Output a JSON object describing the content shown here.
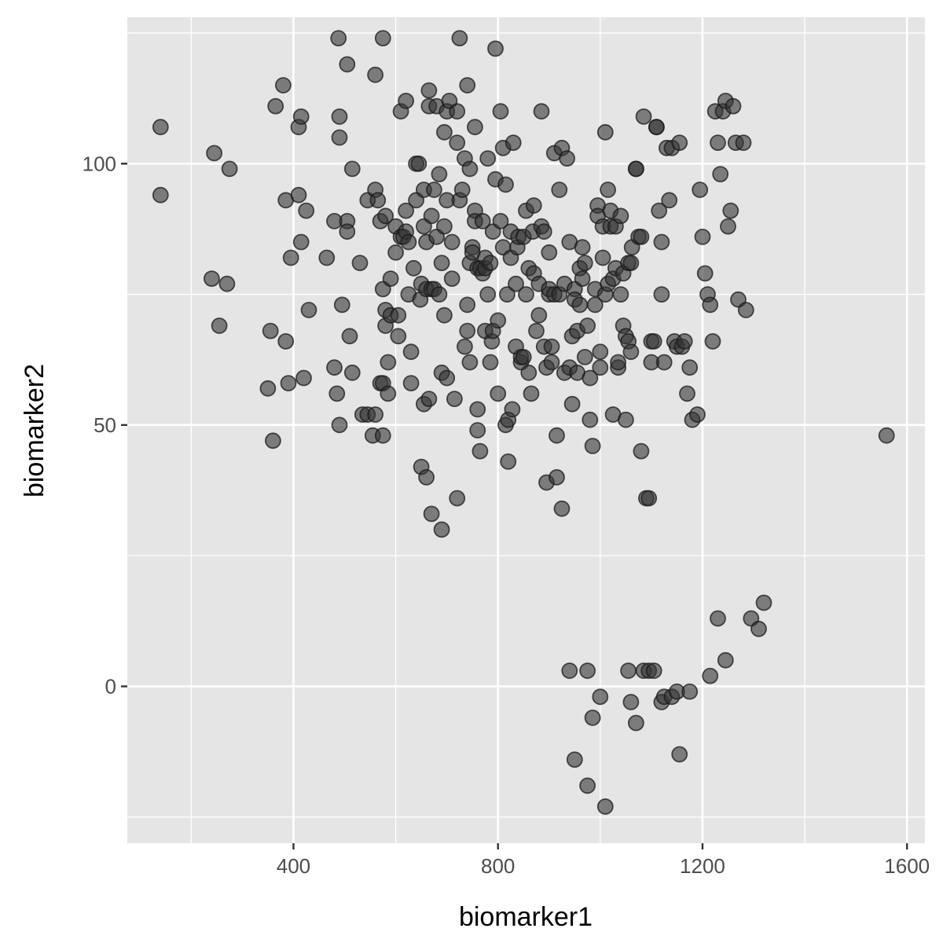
{
  "chart_data": {
    "type": "scatter",
    "xlabel": "biomarker1",
    "ylabel": "biomarker2",
    "xlim": [
      75,
      1635
    ],
    "ylim": [
      -30,
      128
    ],
    "x_ticks": [
      400,
      800,
      1200,
      1600
    ],
    "y_ticks": [
      0,
      50,
      100
    ],
    "x_minor": [
      200,
      600,
      1000,
      1400
    ],
    "y_minor": [
      -25,
      25,
      75,
      125
    ],
    "grid": true,
    "legend": "none",
    "colors": {
      "panel": "#e5e5e5",
      "grid": "#ffffff",
      "point": "#333333",
      "point_stroke": "#1a1a1a"
    },
    "point_opacity": 0.6,
    "points": [
      [
        140,
        107
      ],
      [
        140,
        94
      ],
      [
        245,
        102
      ],
      [
        275,
        99
      ],
      [
        240,
        78
      ],
      [
        255,
        69
      ],
      [
        270,
        77
      ],
      [
        355,
        68
      ],
      [
        350,
        57
      ],
      [
        360,
        47
      ],
      [
        365,
        111
      ],
      [
        380,
        115
      ],
      [
        385,
        93
      ],
      [
        385,
        66
      ],
      [
        390,
        58
      ],
      [
        395,
        82
      ],
      [
        410,
        107
      ],
      [
        410,
        94
      ],
      [
        415,
        109
      ],
      [
        415,
        85
      ],
      [
        420,
        59
      ],
      [
        425,
        91
      ],
      [
        430,
        72
      ],
      [
        465,
        82
      ],
      [
        480,
        89
      ],
      [
        480,
        61
      ],
      [
        485,
        56
      ],
      [
        488,
        124
      ],
      [
        490,
        109
      ],
      [
        490,
        105
      ],
      [
        490,
        50
      ],
      [
        495,
        73
      ],
      [
        505,
        119
      ],
      [
        505,
        89
      ],
      [
        505,
        87
      ],
      [
        510,
        67
      ],
      [
        515,
        99
      ],
      [
        515,
        60
      ],
      [
        530,
        81
      ],
      [
        535,
        52
      ],
      [
        545,
        52
      ],
      [
        545,
        93
      ],
      [
        555,
        48
      ],
      [
        560,
        95
      ],
      [
        560,
        117
      ],
      [
        560,
        52
      ],
      [
        565,
        93
      ],
      [
        570,
        89
      ],
      [
        570,
        58
      ],
      [
        575,
        124
      ],
      [
        575,
        48
      ],
      [
        575,
        58
      ],
      [
        575,
        76
      ],
      [
        580,
        90
      ],
      [
        580,
        72
      ],
      [
        580,
        69
      ],
      [
        585,
        62
      ],
      [
        585,
        56
      ],
      [
        590,
        71
      ],
      [
        590,
        78
      ],
      [
        600,
        88
      ],
      [
        600,
        83
      ],
      [
        605,
        71
      ],
      [
        605,
        67
      ],
      [
        610,
        110
      ],
      [
        610,
        86
      ],
      [
        615,
        86
      ],
      [
        620,
        112
      ],
      [
        620,
        91
      ],
      [
        620,
        87
      ],
      [
        625,
        85
      ],
      [
        625,
        75
      ],
      [
        630,
        58
      ],
      [
        630,
        64
      ],
      [
        635,
        80
      ],
      [
        640,
        100
      ],
      [
        640,
        93
      ],
      [
        645,
        100
      ],
      [
        648,
        74
      ],
      [
        650,
        42
      ],
      [
        650,
        77
      ],
      [
        655,
        95
      ],
      [
        655,
        88
      ],
      [
        655,
        54
      ],
      [
        660,
        76
      ],
      [
        660,
        85
      ],
      [
        660,
        40
      ],
      [
        665,
        114
      ],
      [
        665,
        111
      ],
      [
        665,
        55
      ],
      [
        670,
        76
      ],
      [
        670,
        90
      ],
      [
        670,
        33
      ],
      [
        675,
        95
      ],
      [
        675,
        76
      ],
      [
        680,
        86
      ],
      [
        680,
        111
      ],
      [
        685,
        98
      ],
      [
        685,
        75
      ],
      [
        690,
        81
      ],
      [
        690,
        60
      ],
      [
        690,
        30
      ],
      [
        695,
        88
      ],
      [
        695,
        106
      ],
      [
        695,
        71
      ],
      [
        700,
        93
      ],
      [
        700,
        110
      ],
      [
        700,
        59
      ],
      [
        705,
        112
      ],
      [
        710,
        78
      ],
      [
        710,
        85
      ],
      [
        715,
        55
      ],
      [
        720,
        104
      ],
      [
        720,
        110
      ],
      [
        720,
        36
      ],
      [
        725,
        124
      ],
      [
        725,
        93
      ],
      [
        730,
        95
      ],
      [
        735,
        101
      ],
      [
        735,
        65
      ],
      [
        740,
        115
      ],
      [
        740,
        73
      ],
      [
        740,
        68
      ],
      [
        745,
        99
      ],
      [
        745,
        62
      ],
      [
        745,
        81
      ],
      [
        750,
        84
      ],
      [
        750,
        83
      ],
      [
        755,
        107
      ],
      [
        755,
        91
      ],
      [
        755,
        89
      ],
      [
        760,
        80
      ],
      [
        760,
        53
      ],
      [
        760,
        49
      ],
      [
        765,
        80
      ],
      [
        765,
        45
      ],
      [
        770,
        79
      ],
      [
        770,
        89
      ],
      [
        775,
        68
      ],
      [
        775,
        80
      ],
      [
        775,
        82
      ],
      [
        780,
        75
      ],
      [
        780,
        101
      ],
      [
        785,
        62
      ],
      [
        785,
        81
      ],
      [
        788,
        66
      ],
      [
        790,
        68
      ],
      [
        790,
        87
      ],
      [
        795,
        97
      ],
      [
        795,
        122
      ],
      [
        800,
        56
      ],
      [
        800,
        70
      ],
      [
        805,
        89
      ],
      [
        805,
        110
      ],
      [
        810,
        84
      ],
      [
        810,
        103
      ],
      [
        815,
        96
      ],
      [
        815,
        50
      ],
      [
        818,
        75
      ],
      [
        820,
        51
      ],
      [
        820,
        43
      ],
      [
        825,
        87
      ],
      [
        825,
        82
      ],
      [
        828,
        53
      ],
      [
        830,
        104
      ],
      [
        835,
        77
      ],
      [
        835,
        65
      ],
      [
        838,
        84
      ],
      [
        840,
        86
      ],
      [
        845,
        62
      ],
      [
        845,
        63
      ],
      [
        850,
        86
      ],
      [
        850,
        63
      ],
      [
        855,
        91
      ],
      [
        855,
        75
      ],
      [
        860,
        80
      ],
      [
        860,
        60
      ],
      [
        865,
        56
      ],
      [
        868,
        87
      ],
      [
        870,
        92
      ],
      [
        870,
        79
      ],
      [
        875,
        68
      ],
      [
        880,
        77
      ],
      [
        880,
        71
      ],
      [
        885,
        110
      ],
      [
        885,
        88
      ],
      [
        890,
        87
      ],
      [
        890,
        65
      ],
      [
        895,
        61
      ],
      [
        895,
        39
      ],
      [
        900,
        75
      ],
      [
        900,
        76
      ],
      [
        900,
        83
      ],
      [
        905,
        65
      ],
      [
        905,
        62
      ],
      [
        910,
        75
      ],
      [
        910,
        102
      ],
      [
        915,
        48
      ],
      [
        915,
        40
      ],
      [
        920,
        75
      ],
      [
        920,
        95
      ],
      [
        925,
        34
      ],
      [
        925,
        103
      ],
      [
        930,
        60
      ],
      [
        930,
        77
      ],
      [
        935,
        101
      ],
      [
        940,
        85
      ],
      [
        940,
        61
      ],
      [
        945,
        67
      ],
      [
        945,
        54
      ],
      [
        950,
        76
      ],
      [
        950,
        74
      ],
      [
        955,
        60
      ],
      [
        955,
        68
      ],
      [
        960,
        80
      ],
      [
        960,
        73
      ],
      [
        965,
        78
      ],
      [
        965,
        84
      ],
      [
        970,
        63
      ],
      [
        970,
        81
      ],
      [
        975,
        69
      ],
      [
        980,
        59
      ],
      [
        980,
        51
      ],
      [
        985,
        46
      ],
      [
        990,
        76
      ],
      [
        990,
        73
      ],
      [
        995,
        92
      ],
      [
        995,
        90
      ],
      [
        1000,
        61
      ],
      [
        1000,
        64
      ],
      [
        1005,
        88
      ],
      [
        1005,
        82
      ],
      [
        1010,
        106
      ],
      [
        1010,
        75
      ],
      [
        1015,
        95
      ],
      [
        1015,
        77
      ],
      [
        1020,
        88
      ],
      [
        1020,
        91
      ],
      [
        1025,
        78
      ],
      [
        1025,
        52
      ],
      [
        1030,
        88
      ],
      [
        1030,
        80
      ],
      [
        1035,
        61
      ],
      [
        1035,
        62
      ],
      [
        1040,
        75
      ],
      [
        1040,
        90
      ],
      [
        1045,
        79
      ],
      [
        1045,
        69
      ],
      [
        1050,
        67
      ],
      [
        1050,
        51
      ],
      [
        1055,
        81
      ],
      [
        1055,
        66
      ],
      [
        1060,
        64
      ],
      [
        1060,
        81
      ],
      [
        1062,
        84
      ],
      [
        1070,
        99
      ],
      [
        1070,
        99
      ],
      [
        1075,
        86
      ],
      [
        1080,
        86
      ],
      [
        1080,
        45
      ],
      [
        1085,
        109
      ],
      [
        1090,
        36
      ],
      [
        1095,
        36
      ],
      [
        1100,
        66
      ],
      [
        1100,
        62
      ],
      [
        1105,
        66
      ],
      [
        1110,
        107
      ],
      [
        1110,
        107
      ],
      [
        1115,
        91
      ],
      [
        1120,
        85
      ],
      [
        1120,
        75
      ],
      [
        1125,
        62
      ],
      [
        1130,
        103
      ],
      [
        1135,
        93
      ],
      [
        1140,
        103
      ],
      [
        1145,
        66
      ],
      [
        1150,
        65
      ],
      [
        1155,
        104
      ],
      [
        1160,
        65
      ],
      [
        1165,
        66
      ],
      [
        1170,
        56
      ],
      [
        1175,
        61
      ],
      [
        1180,
        51
      ],
      [
        1190,
        52
      ],
      [
        1195,
        95
      ],
      [
        1200,
        86
      ],
      [
        1205,
        79
      ],
      [
        1210,
        75
      ],
      [
        1215,
        73
      ],
      [
        1220,
        66
      ],
      [
        1225,
        110
      ],
      [
        1230,
        104
      ],
      [
        1235,
        98
      ],
      [
        1240,
        110
      ],
      [
        1245,
        112
      ],
      [
        1250,
        88
      ],
      [
        1255,
        91
      ],
      [
        1260,
        111
      ],
      [
        1265,
        104
      ],
      [
        1270,
        74
      ],
      [
        1280,
        104
      ],
      [
        1285,
        72
      ],
      [
        1560,
        48
      ],
      [
        1010,
        -23
      ],
      [
        975,
        -19
      ],
      [
        950,
        -14
      ],
      [
        1155,
        -13
      ],
      [
        1070,
        -7
      ],
      [
        1060,
        -3
      ],
      [
        985,
        -6
      ],
      [
        1000,
        -2
      ],
      [
        1120,
        -3
      ],
      [
        1125,
        -2
      ],
      [
        1140,
        -2
      ],
      [
        1150,
        -1
      ],
      [
        1175,
        -1
      ],
      [
        940,
        3
      ],
      [
        975,
        3
      ],
      [
        1055,
        3
      ],
      [
        1085,
        3
      ],
      [
        1095,
        3
      ],
      [
        1105,
        3
      ],
      [
        1215,
        2
      ],
      [
        1245,
        5
      ],
      [
        1230,
        13
      ],
      [
        1295,
        13
      ],
      [
        1310,
        11
      ],
      [
        1320,
        16
      ]
    ]
  }
}
